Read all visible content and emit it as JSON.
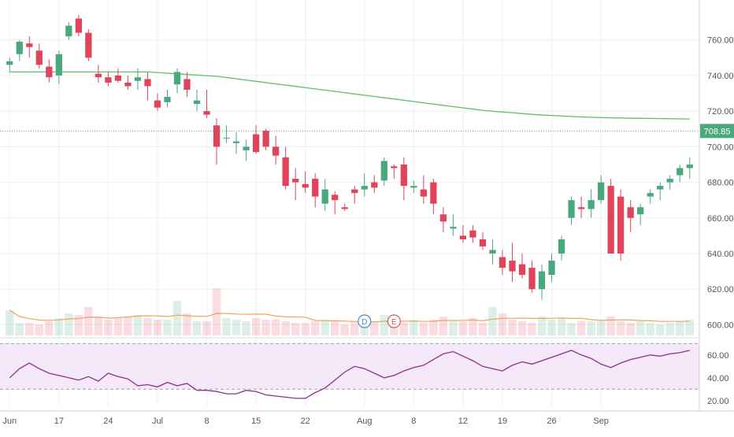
{
  "colors": {
    "up": "#4aa97c",
    "down": "#e0435a",
    "ma": "#5fbf6a",
    "volume_ma": "#f0a35e",
    "rsi_line": "#8e2f8e",
    "rsi_band": "#f1dff7",
    "grid": "#eef0f3",
    "axis_text": "#4f5660",
    "price_tag_bg": "#4aa97c",
    "event_d": "#3f8fd8",
    "event_e": "#d9545c"
  },
  "chart_data": {
    "type": "candlestick",
    "symbol_price": "708.85",
    "x_axis_labels": [
      "Jun",
      "17",
      "24",
      "Jul",
      "8",
      "15",
      "22",
      "Aug",
      "8",
      "12",
      "19",
      "26",
      "Sep"
    ],
    "x_axis_label_bars": [
      0,
      5,
      10,
      15,
      20,
      25,
      30,
      36,
      41,
      46,
      50,
      55,
      60
    ],
    "y_axis": {
      "labels": [
        "760.00",
        "740.00",
        "720.00",
        "700.00",
        "680.00",
        "660.00",
        "640.00",
        "620.00",
        "600.00"
      ],
      "ylim": [
        594,
        778
      ]
    },
    "rsi_axis": {
      "labels": [
        "60.00",
        "40.00",
        "20.00"
      ],
      "ylim": [
        15,
        73
      ],
      "band": [
        30,
        70
      ]
    },
    "ohlc": [
      [
        746,
        750,
        742,
        748
      ],
      [
        752,
        760,
        748,
        759
      ],
      [
        758,
        762,
        750,
        756
      ],
      [
        754,
        758,
        744,
        746
      ],
      [
        745,
        749,
        736,
        739
      ],
      [
        740,
        754,
        735,
        752
      ],
      [
        762,
        770,
        760,
        768
      ],
      [
        772,
        774,
        762,
        764
      ],
      [
        764,
        766,
        748,
        750
      ],
      [
        741,
        746,
        736,
        739
      ],
      [
        739,
        742,
        734,
        736
      ],
      [
        740,
        744,
        736,
        737
      ],
      [
        736,
        740,
        732,
        734
      ],
      [
        737,
        744,
        732,
        739
      ],
      [
        738,
        742,
        726,
        734
      ],
      [
        726,
        730,
        720,
        722
      ],
      [
        725,
        732,
        722,
        728
      ],
      [
        735,
        744,
        730,
        742
      ],
      [
        738,
        742,
        728,
        732
      ],
      [
        724,
        732,
        720,
        726
      ],
      [
        720,
        732,
        716,
        718
      ],
      [
        712,
        716,
        690,
        700
      ],
      [
        705,
        712,
        702,
        705
      ],
      [
        702,
        708,
        696,
        703
      ],
      [
        698,
        704,
        692,
        700
      ],
      [
        707,
        712,
        696,
        697
      ],
      [
        709,
        710,
        698,
        700
      ],
      [
        700,
        706,
        690,
        695
      ],
      [
        694,
        700,
        676,
        678
      ],
      [
        682,
        688,
        670,
        680
      ],
      [
        679,
        686,
        674,
        677
      ],
      [
        682,
        685,
        666,
        672
      ],
      [
        668,
        682,
        664,
        676
      ],
      [
        673,
        675,
        662,
        670
      ],
      [
        666,
        668,
        664,
        665
      ],
      [
        676,
        678,
        668,
        674
      ],
      [
        676,
        685,
        672,
        678
      ],
      [
        680,
        684,
        674,
        677
      ],
      [
        681,
        694,
        678,
        692
      ],
      [
        689,
        690,
        682,
        688
      ],
      [
        690,
        694,
        670,
        678
      ],
      [
        677,
        681,
        674,
        678
      ],
      [
        676,
        684,
        668,
        672
      ],
      [
        680,
        682,
        662,
        668
      ],
      [
        662,
        666,
        652,
        658
      ],
      [
        654,
        662,
        650,
        655
      ],
      [
        650,
        656,
        646,
        648
      ],
      [
        653,
        656,
        646,
        649
      ],
      [
        648,
        652,
        642,
        644
      ],
      [
        640,
        648,
        634,
        642
      ],
      [
        638,
        642,
        628,
        632
      ],
      [
        636,
        646,
        624,
        630
      ],
      [
        634,
        640,
        626,
        628
      ],
      [
        632,
        636,
        618,
        620
      ],
      [
        620,
        634,
        614,
        630
      ],
      [
        628,
        640,
        624,
        636
      ],
      [
        640,
        650,
        636,
        648
      ],
      [
        660,
        672,
        656,
        670
      ],
      [
        666,
        672,
        660,
        665
      ],
      [
        665,
        676,
        660,
        670
      ],
      [
        670,
        684,
        668,
        680
      ],
      [
        678,
        682,
        640,
        640
      ],
      [
        672,
        676,
        636,
        640
      ],
      [
        666,
        670,
        652,
        660
      ],
      [
        662,
        668,
        656,
        666
      ],
      [
        672,
        676,
        668,
        674
      ],
      [
        676,
        680,
        670,
        678
      ],
      [
        680,
        684,
        676,
        682
      ],
      [
        684,
        690,
        680,
        688
      ],
      [
        688,
        694,
        682,
        690
      ]
    ],
    "volume": [
      16,
      8,
      8,
      7,
      9,
      11,
      14,
      13,
      18,
      12,
      10,
      11,
      12,
      13,
      11,
      10,
      10,
      22,
      14,
      9,
      9,
      30,
      11,
      10,
      9,
      11,
      10,
      10,
      9,
      8,
      8,
      9,
      10,
      9,
      7,
      9,
      8,
      9,
      13,
      8,
      8,
      10,
      8,
      10,
      12,
      9,
      9,
      11,
      8,
      18,
      14,
      10,
      9,
      8,
      12,
      10,
      11,
      8,
      9,
      9,
      10,
      12,
      9,
      8,
      9,
      8,
      7,
      8,
      9,
      10
    ],
    "ma200": [
      742,
      742,
      742,
      742,
      742,
      742,
      742,
      742,
      742,
      742,
      742,
      741.5,
      741,
      740.5,
      740,
      739.5,
      738.5,
      737.5,
      736.5,
      735.5,
      734.5,
      733.5,
      732.5,
      731.5,
      730.5,
      729.5,
      728.5,
      727.5,
      726.5,
      725.5,
      724.5,
      723.5,
      722.5,
      721.5,
      720.5,
      719.8,
      719.2,
      718.6,
      718,
      717.6,
      717.2,
      716.8,
      716.5,
      716.3,
      716.1,
      716,
      715.9,
      715.8,
      715.7,
      715.6
    ],
    "rsi": [
      40,
      48,
      53,
      48,
      44,
      42,
      40,
      38,
      41,
      37,
      44,
      41,
      39,
      33,
      34,
      32,
      36,
      33,
      35,
      29,
      29,
      28,
      26,
      26,
      29,
      28,
      25,
      24,
      23,
      22,
      22,
      27,
      31,
      38,
      45,
      50,
      48,
      44,
      40,
      42,
      46,
      49,
      51,
      56,
      61,
      63,
      59,
      55,
      50,
      48,
      46,
      51,
      54,
      52,
      55,
      58,
      61,
      64,
      60,
      57,
      52,
      49,
      53,
      56,
      58,
      60,
      59,
      61,
      62,
      64
    ]
  },
  "price_tag_label": "708.85",
  "events": [
    {
      "letter": "D"
    },
    {
      "letter": "E"
    }
  ]
}
